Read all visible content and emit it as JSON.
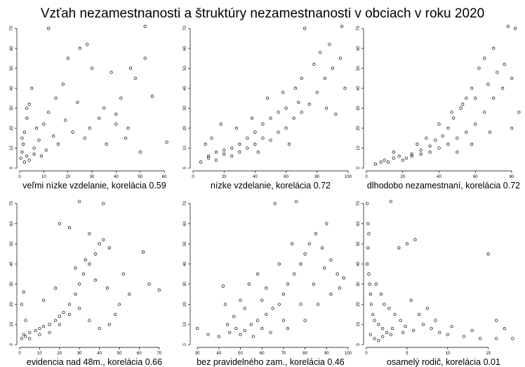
{
  "chart_data": {
    "title": "Vzťah nezamestnanosti a štruktúry nezamestnanosti v obciach v roku 2020",
    "type": "scatter",
    "grid": false,
    "panels": [
      {
        "xlabel": "veľmi nízke vzdelanie, korelácia 0.59",
        "xlim": [
          0,
          62
        ],
        "ylim": [
          0,
          73
        ],
        "xticks": [
          0,
          10,
          20,
          30,
          40,
          50,
          60
        ],
        "yticks": [
          0,
          10,
          20,
          30,
          40,
          50,
          60,
          70
        ],
        "points": [
          [
            0.5,
            5
          ],
          [
            1,
            8
          ],
          [
            1.5,
            12
          ],
          [
            2,
            18
          ],
          [
            3,
            25
          ],
          [
            4,
            32
          ],
          [
            5,
            40
          ],
          [
            3,
            6
          ],
          [
            6,
            10
          ],
          [
            8,
            14
          ],
          [
            10,
            22
          ],
          [
            12,
            28
          ],
          [
            15,
            35
          ],
          [
            18,
            42
          ],
          [
            20,
            55
          ],
          [
            25,
            60
          ],
          [
            30,
            50
          ],
          [
            35,
            30
          ],
          [
            40,
            27
          ],
          [
            45,
            20
          ],
          [
            50,
            8
          ],
          [
            52,
            71
          ],
          [
            52,
            55
          ],
          [
            55,
            36
          ],
          [
            61,
            13
          ],
          [
            12,
            70
          ],
          [
            28,
            62
          ],
          [
            38,
            48
          ],
          [
            42,
            35
          ],
          [
            48,
            45
          ],
          [
            22,
            18
          ],
          [
            27,
            15
          ],
          [
            33,
            25
          ],
          [
            16,
            12
          ],
          [
            7,
            20
          ],
          [
            9,
            6
          ],
          [
            11,
            9
          ],
          [
            14,
            16
          ],
          [
            19,
            24
          ],
          [
            24,
            33
          ],
          [
            29,
            20
          ],
          [
            36,
            12
          ],
          [
            2,
            3
          ],
          [
            1,
            15
          ],
          [
            4,
            4
          ],
          [
            6,
            7
          ],
          [
            3,
            30
          ],
          [
            44,
            15
          ],
          [
            40,
            22
          ],
          [
            46,
            50
          ]
        ]
      },
      {
        "xlabel": "nízke vzdelanie, korelácia 0.72",
        "xlim": [
          0,
          100
        ],
        "ylim": [
          0,
          73
        ],
        "xticks": [
          0,
          20,
          40,
          60,
          80,
          100
        ],
        "yticks": [
          0,
          10,
          20,
          30,
          40,
          50,
          60,
          70
        ],
        "points": [
          [
            5,
            3
          ],
          [
            10,
            5
          ],
          [
            15,
            4
          ],
          [
            20,
            7
          ],
          [
            25,
            6
          ],
          [
            30,
            8
          ],
          [
            35,
            10
          ],
          [
            40,
            12
          ],
          [
            45,
            15
          ],
          [
            50,
            14
          ],
          [
            55,
            18
          ],
          [
            60,
            20
          ],
          [
            65,
            25
          ],
          [
            70,
            28
          ],
          [
            75,
            32
          ],
          [
            80,
            38
          ],
          [
            85,
            45
          ],
          [
            90,
            50
          ],
          [
            95,
            55
          ],
          [
            98,
            40
          ],
          [
            96,
            71
          ],
          [
            72,
            70
          ],
          [
            88,
            62
          ],
          [
            82,
            58
          ],
          [
            78,
            52
          ],
          [
            70,
            45
          ],
          [
            66,
            40
          ],
          [
            60,
            30
          ],
          [
            55,
            28
          ],
          [
            50,
            25
          ],
          [
            45,
            22
          ],
          [
            40,
            18
          ],
          [
            35,
            15
          ],
          [
            30,
            12
          ],
          [
            25,
            10
          ],
          [
            20,
            9
          ],
          [
            15,
            8
          ],
          [
            10,
            6
          ],
          [
            8,
            12
          ],
          [
            12,
            15
          ],
          [
            18,
            22
          ],
          [
            28,
            20
          ],
          [
            38,
            25
          ],
          [
            48,
            35
          ],
          [
            58,
            38
          ],
          [
            68,
            33
          ],
          [
            86,
            30
          ],
          [
            92,
            27
          ],
          [
            62,
            12
          ],
          [
            42,
            8
          ]
        ]
      },
      {
        "xlabel": "dlhodobo nezamestnaní, korelácia 0.72",
        "xlim": [
          0,
          85
        ],
        "ylim": [
          0,
          73
        ],
        "xticks": [
          0,
          20,
          40,
          60,
          80
        ],
        "yticks": [
          0,
          10,
          20,
          30,
          40,
          50,
          60,
          70
        ],
        "points": [
          [
            5,
            2
          ],
          [
            8,
            3
          ],
          [
            10,
            4
          ],
          [
            15,
            5
          ],
          [
            20,
            4
          ],
          [
            25,
            6
          ],
          [
            30,
            7
          ],
          [
            35,
            8
          ],
          [
            40,
            10
          ],
          [
            45,
            12
          ],
          [
            50,
            15
          ],
          [
            55,
            18
          ],
          [
            60,
            22
          ],
          [
            65,
            28
          ],
          [
            70,
            35
          ],
          [
            75,
            40
          ],
          [
            80,
            45
          ],
          [
            82,
            70
          ],
          [
            78,
            71
          ],
          [
            70,
            60
          ],
          [
            65,
            55
          ],
          [
            62,
            50
          ],
          [
            58,
            40
          ],
          [
            55,
            35
          ],
          [
            52,
            30
          ],
          [
            48,
            25
          ],
          [
            45,
            20
          ],
          [
            42,
            16
          ],
          [
            38,
            14
          ],
          [
            35,
            11
          ],
          [
            30,
            9
          ],
          [
            25,
            7
          ],
          [
            22,
            5
          ],
          [
            18,
            6
          ],
          [
            12,
            3
          ],
          [
            15,
            8
          ],
          [
            28,
            12
          ],
          [
            33,
            15
          ],
          [
            40,
            22
          ],
          [
            47,
            28
          ],
          [
            53,
            32
          ],
          [
            60,
            35
          ],
          [
            67,
            42
          ],
          [
            72,
            48
          ],
          [
            76,
            52
          ],
          [
            84,
            28
          ],
          [
            80,
            20
          ],
          [
            68,
            18
          ],
          [
            58,
            12
          ],
          [
            50,
            8
          ]
        ]
      },
      {
        "xlabel": "evidencia nad 48m., korelácia 0.66",
        "xlim": [
          0,
          75
        ],
        "ylim": [
          0,
          73
        ],
        "xticks": [
          0,
          10,
          20,
          30,
          40,
          50,
          60,
          70
        ],
        "yticks": [
          0,
          10,
          20,
          30,
          40,
          50,
          60,
          70
        ],
        "points": [
          [
            1,
            3
          ],
          [
            2,
            5
          ],
          [
            3,
            4
          ],
          [
            5,
            6
          ],
          [
            8,
            7
          ],
          [
            10,
            8
          ],
          [
            12,
            9
          ],
          [
            15,
            10
          ],
          [
            18,
            12
          ],
          [
            20,
            14
          ],
          [
            22,
            16
          ],
          [
            25,
            20
          ],
          [
            28,
            25
          ],
          [
            30,
            30
          ],
          [
            32,
            35
          ],
          [
            35,
            40
          ],
          [
            38,
            45
          ],
          [
            40,
            50
          ],
          [
            42,
            52
          ],
          [
            45,
            48
          ],
          [
            30,
            71
          ],
          [
            42,
            70
          ],
          [
            20,
            60
          ],
          [
            25,
            58
          ],
          [
            35,
            55
          ],
          [
            62,
            46
          ],
          [
            70,
            27
          ],
          [
            65,
            30
          ],
          [
            55,
            25
          ],
          [
            50,
            20
          ],
          [
            48,
            15
          ],
          [
            45,
            10
          ],
          [
            40,
            8
          ],
          [
            35,
            12
          ],
          [
            30,
            18
          ],
          [
            25,
            15
          ],
          [
            20,
            10
          ],
          [
            15,
            6
          ],
          [
            10,
            5
          ],
          [
            5,
            3
          ],
          [
            2,
            26
          ],
          [
            1,
            20
          ],
          [
            3,
            12
          ],
          [
            12,
            22
          ],
          [
            18,
            28
          ],
          [
            28,
            38
          ],
          [
            33,
            42
          ],
          [
            38,
            32
          ],
          [
            44,
            28
          ],
          [
            52,
            35
          ]
        ]
      },
      {
        "xlabel": "bez pravidelného zam., korelácia 0.46",
        "xlim": [
          28,
          100
        ],
        "ylim": [
          0,
          73
        ],
        "xticks": [
          30,
          40,
          50,
          60,
          70,
          80,
          90,
          100
        ],
        "yticks": [
          0,
          10,
          20,
          30,
          40,
          50,
          60,
          70
        ],
        "points": [
          [
            30,
            8
          ],
          [
            35,
            5
          ],
          [
            40,
            4
          ],
          [
            42,
            29
          ],
          [
            43,
            20
          ],
          [
            45,
            6
          ],
          [
            48,
            8
          ],
          [
            50,
            5
          ],
          [
            52,
            7
          ],
          [
            55,
            10
          ],
          [
            58,
            12
          ],
          [
            60,
            8
          ],
          [
            62,
            15
          ],
          [
            65,
            18
          ],
          [
            68,
            20
          ],
          [
            70,
            25
          ],
          [
            72,
            30
          ],
          [
            75,
            35
          ],
          [
            78,
            40
          ],
          [
            80,
            45
          ],
          [
            82,
            50
          ],
          [
            85,
            55
          ],
          [
            88,
            48
          ],
          [
            90,
            60
          ],
          [
            92,
            42
          ],
          [
            95,
            35
          ],
          [
            98,
            33
          ],
          [
            76,
            71
          ],
          [
            66,
            70
          ],
          [
            58,
            35
          ],
          [
            54,
            30
          ],
          [
            50,
            22
          ],
          [
            47,
            14
          ],
          [
            44,
            10
          ],
          [
            56,
            4
          ],
          [
            64,
            6
          ],
          [
            72,
            8
          ],
          [
            80,
            12
          ],
          [
            86,
            20
          ],
          [
            92,
            25
          ],
          [
            96,
            28
          ],
          [
            62,
            28
          ],
          [
            70,
            12
          ],
          [
            78,
            20
          ],
          [
            84,
            30
          ],
          [
            89,
            38
          ],
          [
            74,
            50
          ],
          [
            68,
            40
          ],
          [
            60,
            22
          ],
          [
            52,
            18
          ]
        ]
      },
      {
        "xlabel": "osamelý rodič, korelácia 0.01",
        "xlim": [
          0,
          19
        ],
        "ylim": [
          0,
          73
        ],
        "xticks": [
          0,
          5,
          10,
          15
        ],
        "yticks": [
          0,
          10,
          20,
          30,
          40,
          50,
          60,
          70
        ],
        "points": [
          [
            0.1,
            70
          ],
          [
            0.2,
            60
          ],
          [
            0.3,
            55
          ],
          [
            0.2,
            48
          ],
          [
            0.1,
            40
          ],
          [
            0.3,
            35
          ],
          [
            0.4,
            30
          ],
          [
            0.5,
            25
          ],
          [
            0.6,
            20
          ],
          [
            0.8,
            15
          ],
          [
            1,
            12
          ],
          [
            1.5,
            10
          ],
          [
            2,
            8
          ],
          [
            2.5,
            6
          ],
          [
            3,
            5
          ],
          [
            3,
            71
          ],
          [
            4,
            48
          ],
          [
            5,
            50
          ],
          [
            6,
            52
          ],
          [
            5.5,
            22
          ],
          [
            6.5,
            15
          ],
          [
            7,
            10
          ],
          [
            8,
            8
          ],
          [
            9,
            6
          ],
          [
            10,
            5
          ],
          [
            12,
            4
          ],
          [
            14,
            3
          ],
          [
            16,
            3
          ],
          [
            18,
            3
          ],
          [
            15,
            45
          ],
          [
            16,
            12
          ],
          [
            17,
            8
          ],
          [
            1.2,
            30
          ],
          [
            1.8,
            25
          ],
          [
            2.2,
            20
          ],
          [
            2.8,
            18
          ],
          [
            3.5,
            15
          ],
          [
            4.2,
            12
          ],
          [
            4.8,
            9
          ],
          [
            5.8,
            7
          ],
          [
            0.5,
            5
          ],
          [
            1,
            3
          ],
          [
            1.5,
            2
          ],
          [
            2,
            4
          ],
          [
            3.2,
            8
          ],
          [
            4.5,
            6
          ],
          [
            7.5,
            18
          ],
          [
            8.5,
            12
          ],
          [
            10.5,
            9
          ],
          [
            13,
            7
          ]
        ]
      }
    ]
  }
}
